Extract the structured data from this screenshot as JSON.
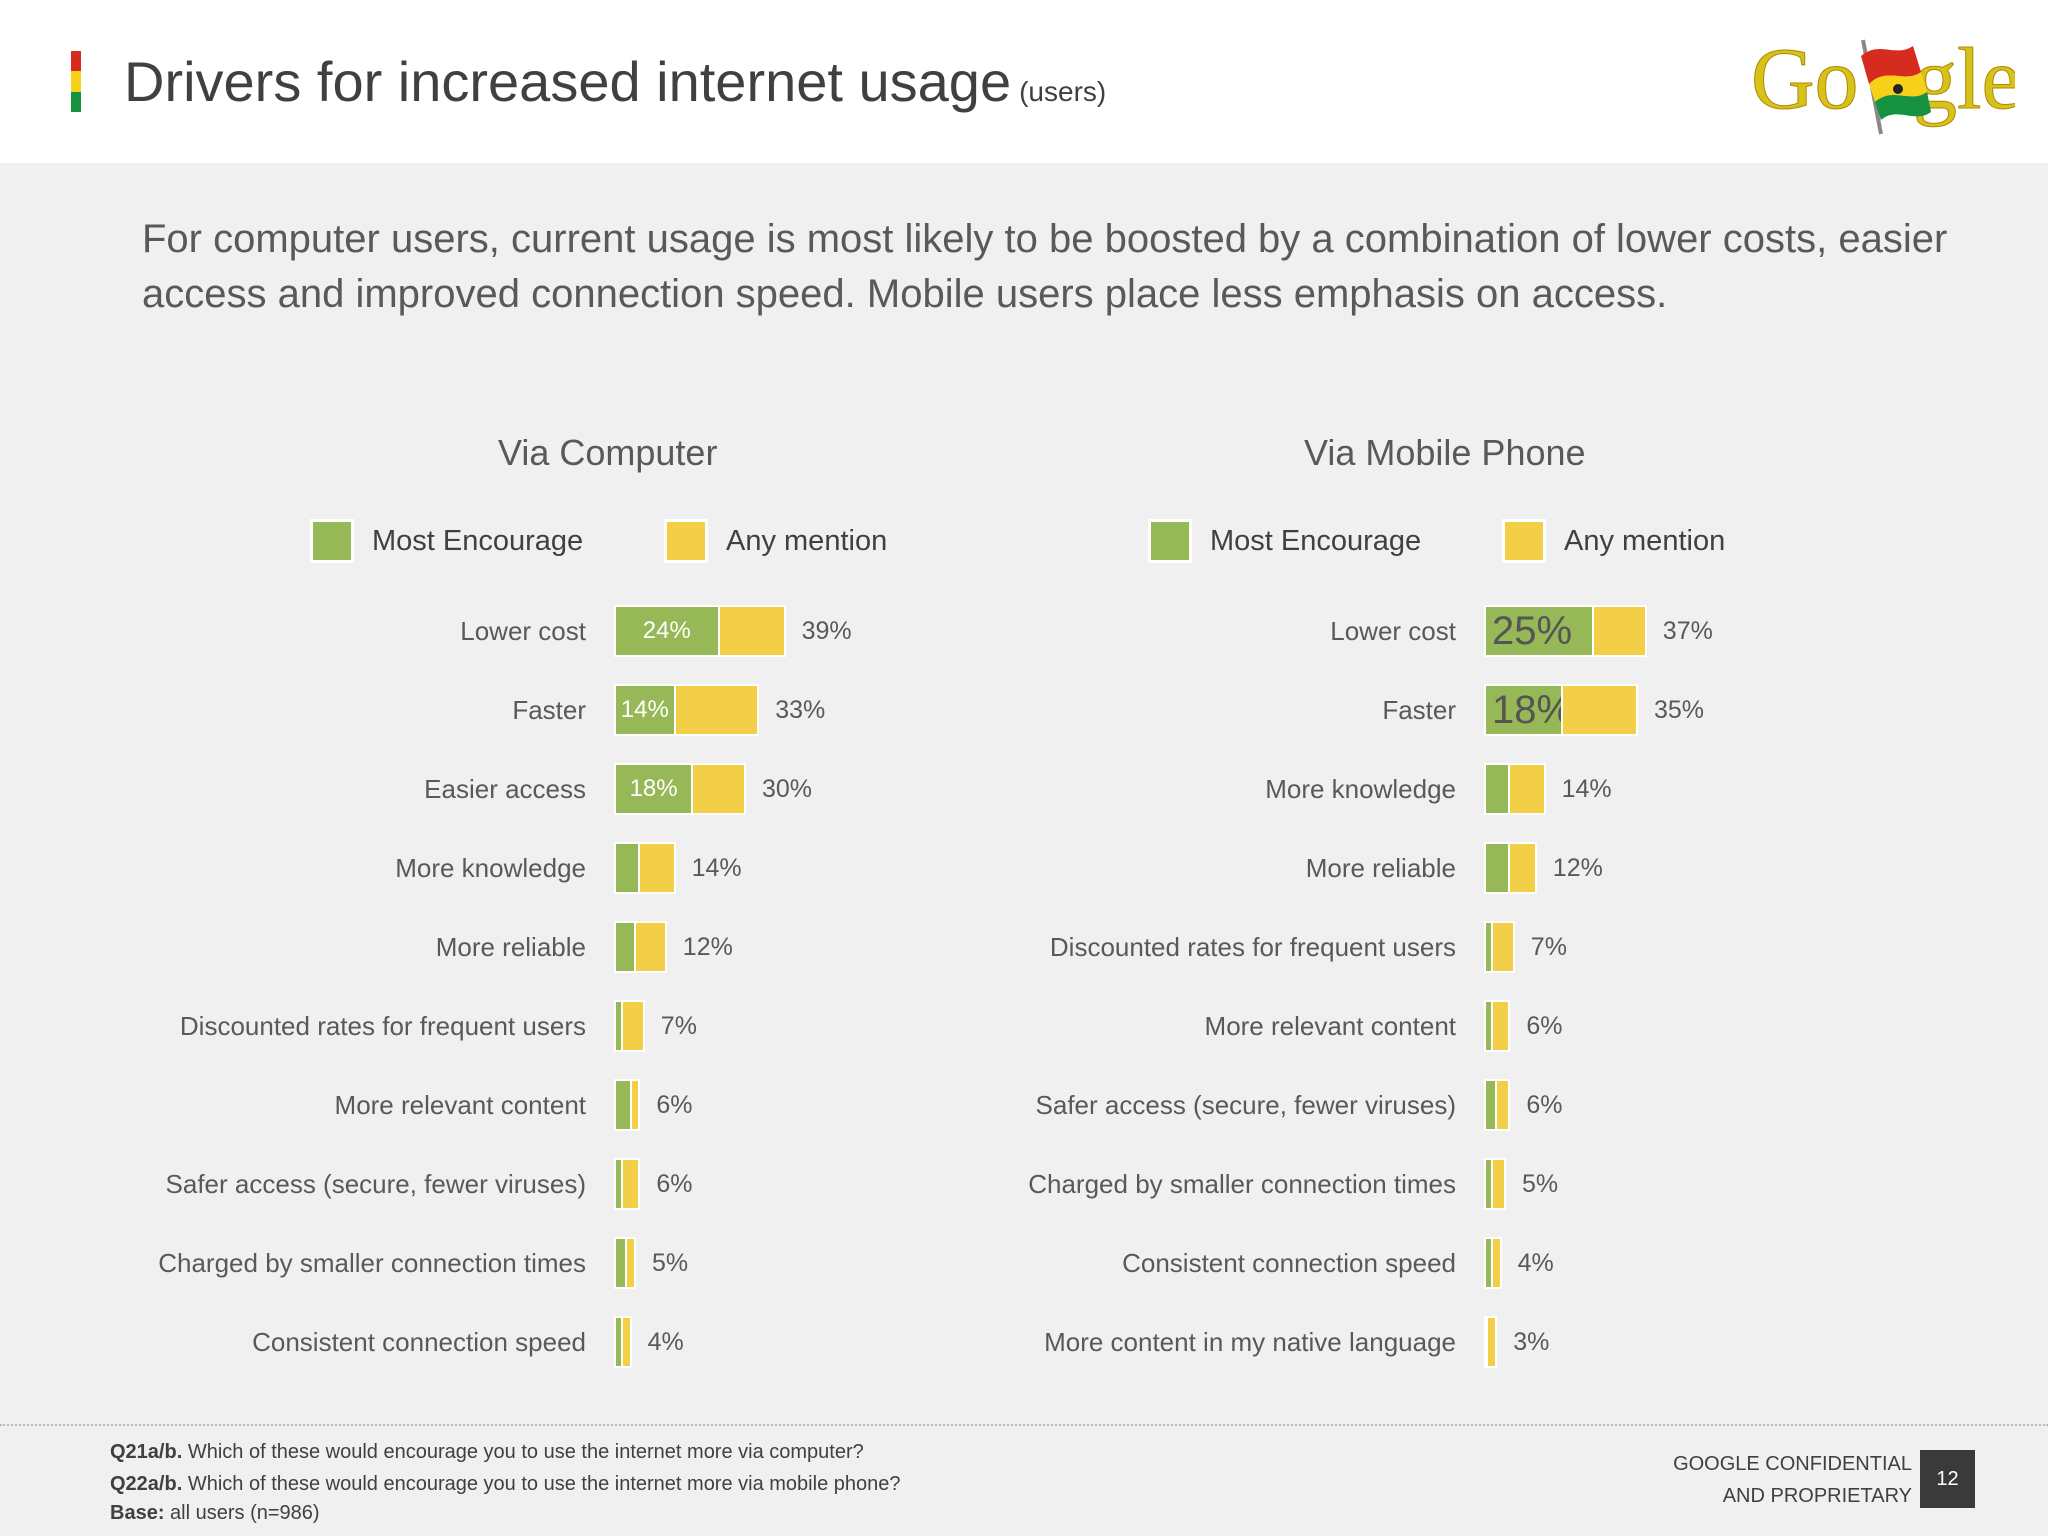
{
  "header": {
    "title": "Drivers for increased internet usage",
    "title_suffix": "(users)",
    "logo_text": "Google",
    "flag_colors": [
      "#d62b1f",
      "#f7d117",
      "#159140"
    ]
  },
  "subtitle": "For computer users, current usage is most likely to be boosted by a combination of lower costs, easier access and improved connection speed. Mobile users place less emphasis on access.",
  "colors": {
    "most_encourage": "#96b856",
    "any_mention": "#f2cf46"
  },
  "chart_data": [
    {
      "type": "bar",
      "orientation": "horizontal",
      "stacked_overlay": true,
      "title": "Via Computer",
      "legend": [
        "Most Encourage",
        "Any mention"
      ],
      "legend_position": "top",
      "categories": [
        "Lower cost",
        "Faster",
        "Easier access",
        "More knowledge",
        "More reliable",
        "Discounted rates for frequent users",
        "More relevant content",
        "Safer access (secure, fewer viruses)",
        "Charged by smaller connection times",
        "Consistent connection speed"
      ],
      "series": [
        {
          "name": "Most Encourage",
          "values": [
            24,
            14,
            18,
            6,
            5,
            2,
            4,
            2,
            3,
            2
          ],
          "labels": [
            "24%",
            "14%",
            "18%",
            "",
            "",
            "",
            "",
            "",
            "",
            ""
          ]
        },
        {
          "name": "Any mention",
          "values": [
            39,
            33,
            30,
            14,
            12,
            7,
            6,
            6,
            5,
            4
          ],
          "labels": [
            "39%",
            "33%",
            "30%",
            "14%",
            "12%",
            "7%",
            "6%",
            "6%",
            "5%",
            "4%"
          ]
        }
      ]
    },
    {
      "type": "bar",
      "orientation": "horizontal",
      "stacked_overlay": true,
      "title": "Via Mobile Phone",
      "legend": [
        "Most Encourage",
        "Any mention"
      ],
      "legend_position": "top",
      "categories": [
        "Lower cost",
        "Faster",
        "More knowledge",
        "More reliable",
        "Discounted rates for frequent users",
        "More relevant content",
        "Safer access (secure, fewer viruses)",
        "Charged by smaller connection times",
        "Consistent connection speed",
        "More content in my native language"
      ],
      "series": [
        {
          "name": "Most Encourage",
          "values": [
            25,
            18,
            6,
            6,
            2,
            2,
            3,
            2,
            2,
            1
          ],
          "labels": [
            "25%",
            "18%",
            "",
            "",
            "",
            "",
            "",
            "",
            "",
            ""
          ]
        },
        {
          "name": "Any mention",
          "values": [
            37,
            35,
            14,
            12,
            7,
            6,
            6,
            5,
            4,
            3
          ],
          "labels": [
            "37%",
            "35%",
            "14%",
            "12%",
            "7%",
            "6%",
            "6%",
            "5%",
            "4%",
            "3%"
          ]
        }
      ]
    }
  ],
  "footer": {
    "q1_label": "Q21a/b.",
    "q1_text": "Which of these would encourage you to use the internet more via computer?",
    "q2_label": "Q22a/b.",
    "q2_text": "Which of these would encourage you to use the internet more via mobile phone?",
    "base_label": "Base:",
    "base_text": "all users (n=986)",
    "confidential_line1": "GOOGLE CONFIDENTIAL",
    "confidential_line2": "AND PROPRIETARY",
    "page_number": "12"
  }
}
